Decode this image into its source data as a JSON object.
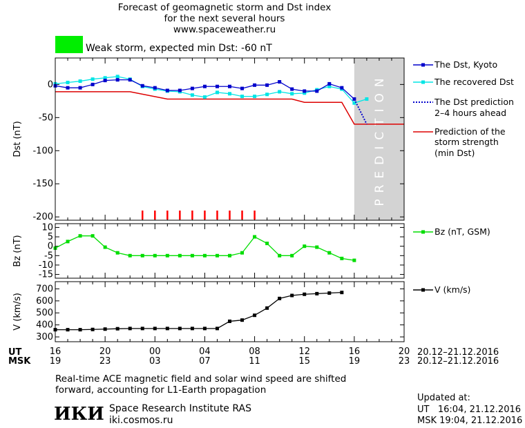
{
  "header": {
    "title_line1": "Forecast of geomagnetic storm and Dst index",
    "title_line2": "for the next several hours",
    "site": "www.spaceweather.ru",
    "storm_color": "#00ee00",
    "storm_text": "Weak storm, expected min Dst: -60 nT"
  },
  "panels": {
    "dst": {
      "ylabel": "Dst (nT)",
      "yticks": [
        0,
        -50,
        -100,
        -150,
        -200
      ],
      "ylim": [
        -205,
        40
      ],
      "prediction_text": "PREDICTION",
      "prediction_shade": "#d3d3d3"
    },
    "bz": {
      "ylabel": "Bz (nT)",
      "yticks": [
        10,
        5,
        0,
        -5,
        -10,
        -15
      ],
      "ylim": [
        -17,
        12
      ]
    },
    "v": {
      "ylabel": "V (km/s)",
      "yticks": [
        300,
        400,
        500,
        600,
        700
      ],
      "ylim": [
        260,
        760
      ]
    }
  },
  "legend": {
    "dst_kyoto": "The Dst, Kyoto",
    "dst_recovered": "The recovered Dst",
    "dst_prediction_l1": "The Dst prediction",
    "dst_prediction_l2": "2–4 hours ahead",
    "storm_l1": "Prediction of the",
    "storm_l2": "storm strength",
    "storm_l3": "(min Dst)",
    "bz": "Bz (nT, GSM)",
    "v": "V (km/s)"
  },
  "time_axis": {
    "ut_label": "UT",
    "msk_label": "MSK",
    "ut_ticks": [
      "16",
      "20",
      "00",
      "04",
      "08",
      "12",
      "16",
      "20"
    ],
    "msk_ticks": [
      "19",
      "23",
      "03",
      "07",
      "11",
      "15",
      "19",
      "23"
    ],
    "date_range_ut": "20.12–21.12.2016",
    "date_range_msk": "20.12–21.12.2016"
  },
  "footer": {
    "note_line1": "Real-time ACE magnetic field and solar wind speed are shifted",
    "note_line2": "forward, accounting for L1-Earth propagation",
    "logo": "ИКИ",
    "institute": "Space Research Institute RAS",
    "institute_url": "iki.cosmos.ru",
    "updated_label": "Updated at:",
    "updated_ut": "UT   16:04, 21.12.2016",
    "updated_msk": "MSK 19:04, 21.12.2016"
  },
  "chart_data": {
    "type": "line",
    "x_unit": "hours UT from 16:00 20.12.2016",
    "prediction_from_x": 24,
    "dst_kyoto": {
      "color": "#0000cc",
      "x": [
        0,
        1,
        2,
        3,
        4,
        5,
        6,
        7,
        8,
        9,
        10,
        11,
        12,
        13,
        14,
        15,
        16,
        17,
        18,
        19,
        20,
        21,
        22,
        23,
        24
      ],
      "y": [
        -2,
        -5,
        -5,
        0,
        6,
        7,
        7,
        -2,
        -5,
        -9,
        -9,
        -6,
        -3,
        -3,
        -3,
        -6,
        -1,
        -1,
        4,
        -7,
        -10,
        -10,
        1,
        -5,
        -22
      ]
    },
    "dst_recovered": {
      "color": "#00e5e5",
      "x": [
        0,
        1,
        2,
        3,
        4,
        5,
        6,
        7,
        8,
        9,
        10,
        11,
        12,
        13,
        14,
        15,
        16,
        17,
        18,
        19,
        20,
        21,
        22,
        23,
        24,
        25
      ],
      "y": [
        1,
        3,
        5,
        8,
        10,
        12,
        8,
        -3,
        -7,
        -10,
        -11,
        -16,
        -19,
        -12,
        -14,
        -18,
        -18,
        -15,
        -11,
        -14,
        -13,
        -8,
        -3,
        -7,
        -28,
        -22
      ]
    },
    "dst_prediction": {
      "color": "#0000cc",
      "x": [
        24,
        25
      ],
      "y": [
        -22,
        -60
      ]
    },
    "storm_min_dst": {
      "color": "#dd0000",
      "x": [
        0,
        6,
        9,
        19,
        20,
        23,
        24,
        28
      ],
      "y": [
        -11,
        -11,
        -22,
        -22,
        -27,
        -27,
        -60,
        -60
      ]
    },
    "storm_markers_x": [
      7,
      8,
      9,
      10,
      11,
      12,
      13,
      14,
      15,
      16
    ],
    "storm_marker_color": "#ff0000",
    "bz": {
      "color": "#00dd00",
      "x": [
        0,
        1,
        2,
        3,
        4,
        5,
        6,
        7,
        8,
        9,
        10,
        11,
        12,
        13,
        14,
        15,
        16,
        17,
        18,
        19,
        20,
        21,
        22,
        23,
        24,
        25
      ],
      "y": [
        -1,
        2.5,
        5.5,
        5.5,
        -0.5,
        -3.5,
        -5,
        -5,
        -5,
        -5,
        -5,
        -5,
        -5,
        -5,
        -5,
        -3.5,
        5,
        1.5,
        -5,
        -5,
        0,
        -0.5,
        -3.5,
        -6.5,
        -7.5,
        null
      ]
    },
    "v": {
      "color": "#000000",
      "x": [
        0,
        1,
        2,
        3,
        4,
        5,
        6,
        7,
        8,
        9,
        10,
        11,
        12,
        13,
        14,
        15,
        16,
        17,
        18,
        19,
        20,
        21,
        22,
        23,
        24,
        25
      ],
      "y": [
        360,
        360,
        360,
        362,
        365,
        368,
        370,
        370,
        370,
        370,
        370,
        370,
        370,
        370,
        430,
        440,
        480,
        540,
        620,
        645,
        655,
        660,
        665,
        670,
        null,
        null
      ]
    }
  }
}
